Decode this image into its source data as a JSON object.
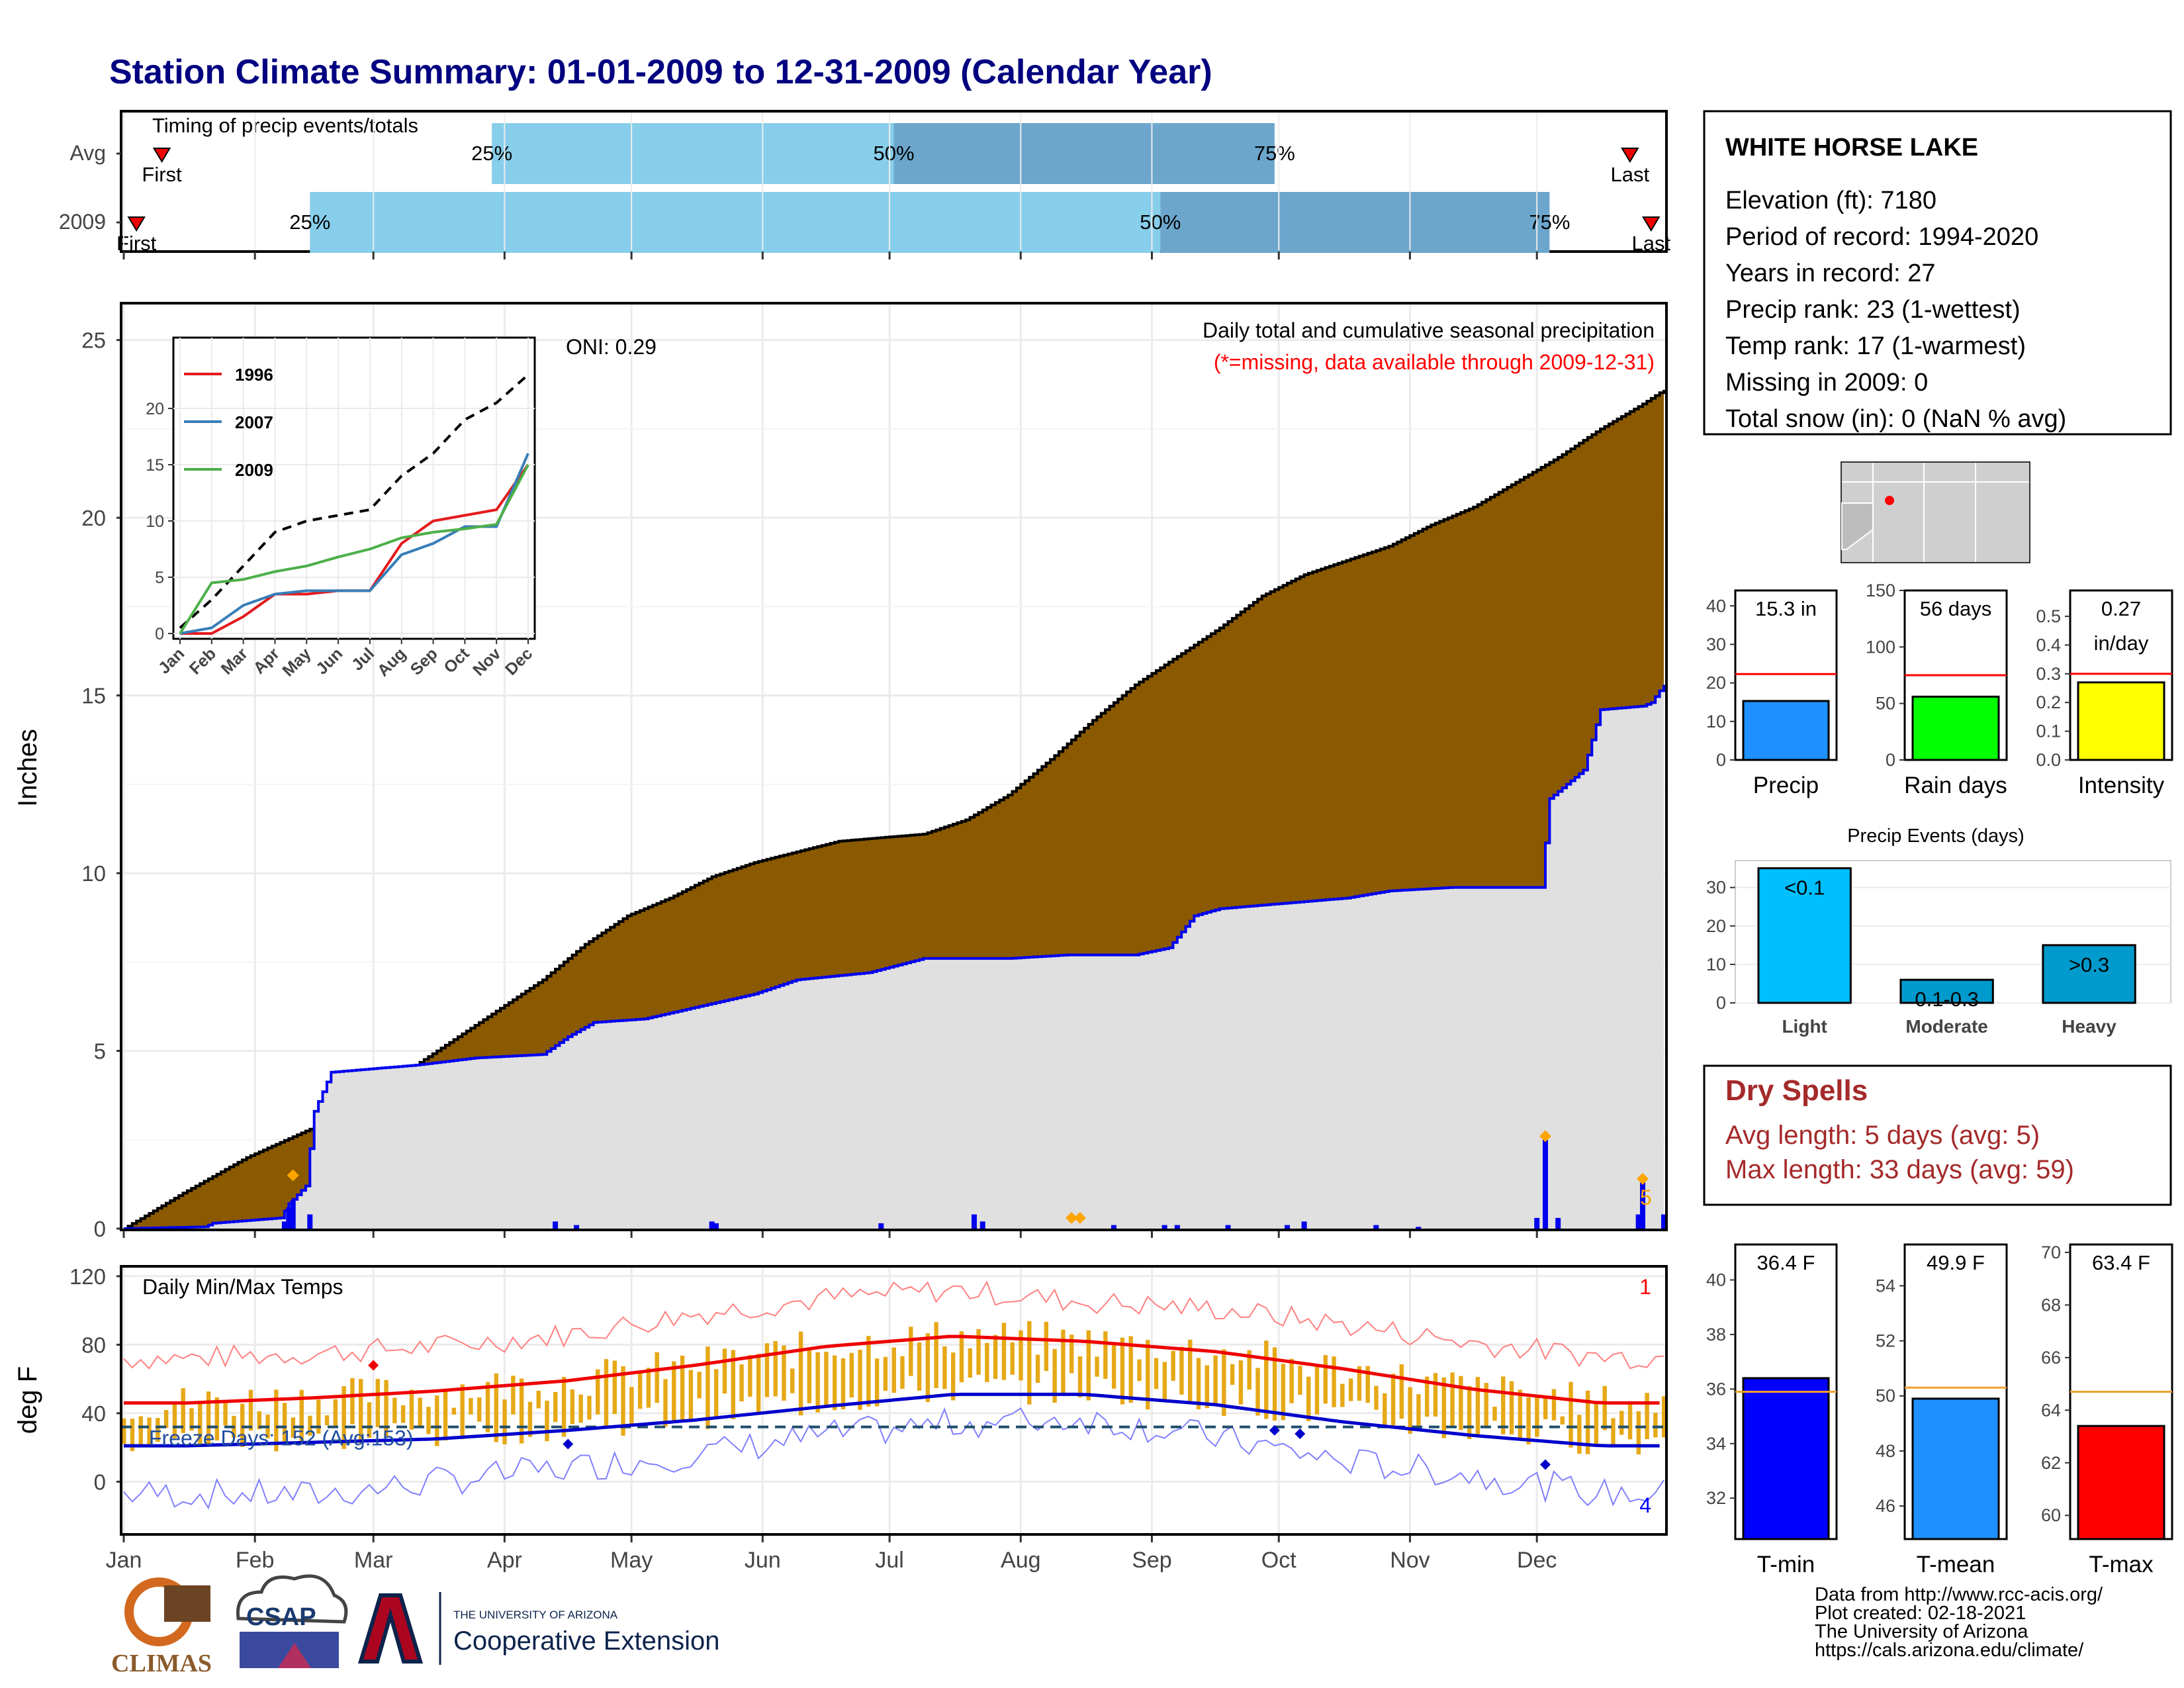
{
  "title": "Station Climate Summary: 01-01-2009 to 12-31-2009 (Calendar Year)",
  "timing": {
    "label": "Timing of precip events/totals",
    "rows": [
      {
        "name": "Avg",
        "first_doy": 10,
        "p25": 88,
        "p50": 183,
        "p75": 273,
        "last_doy": 357,
        "first_label": "First",
        "last_label": "Last"
      },
      {
        "name": "2009",
        "first_doy": 4,
        "p25": 45,
        "p50": 246,
        "p75": 338,
        "last_doy": 362,
        "first_label": "First",
        "last_label": "Last"
      }
    ],
    "pct_labels": [
      "25%",
      "50%",
      "75%"
    ],
    "colors": {
      "light": "#87ceeb",
      "dark": "#6ca6cd"
    }
  },
  "info": {
    "station": "WHITE HORSE LAKE",
    "lines": [
      "Elevation (ft): 7180",
      "Period of record: 1994-2020",
      "Years in record: 27",
      "Precip rank: 23 (1-wettest)",
      "Temp rank: 17 (1-warmest)",
      "Missing in 2009: 0",
      "Total snow (in): 0 (NaN % avg)"
    ]
  },
  "precip_panel": {
    "ylabel": "Inches",
    "header1": "Daily total and cumulative seasonal precipitation",
    "header2": "(*=missing, data available through 2009-12-31)",
    "oni": "ONI: 0.29",
    "count_label": "5"
  },
  "temp_panel": {
    "ylabel": "deg F",
    "label": "Daily Min/Max Temps",
    "freeze": "Freeze Days: 152 (Avg:153)",
    "count_top": "1",
    "count_bottom": "4"
  },
  "month_labels": [
    "Jan",
    "Feb",
    "Mar",
    "Apr",
    "May",
    "Jun",
    "Jul",
    "Aug",
    "Sep",
    "Oct",
    "Nov",
    "Dec"
  ],
  "inset_month_labels": [
    "Jan",
    "Feb",
    "Mar",
    "Apr",
    "May",
    "Jun",
    "Jul",
    "Aug",
    "Sep",
    "Oct",
    "Nov",
    "Dec"
  ],
  "chart_data": [
    {
      "type": "area",
      "title": "Daily total and cumulative seasonal precipitation",
      "ylabel": "Inches",
      "ylim": [
        0,
        26
      ],
      "series": [
        {
          "name": "Average cumulative",
          "x_doy": [
            1,
            15,
            30,
            45,
            60,
            75,
            90,
            100,
            110,
            120,
            130,
            140,
            150,
            160,
            170,
            180,
            190,
            200,
            210,
            220,
            230,
            240,
            250,
            260,
            270,
            280,
            290,
            300,
            310,
            320,
            330,
            340,
            350,
            360,
            365
          ],
          "values": [
            0,
            1.0,
            2.0,
            2.8,
            3.8,
            5.0,
            6.2,
            7.0,
            8.0,
            8.8,
            9.3,
            9.9,
            10.3,
            10.6,
            10.9,
            11.0,
            11.1,
            11.5,
            12.2,
            13.2,
            14.3,
            15.3,
            16.1,
            16.9,
            17.8,
            18.4,
            18.8,
            19.2,
            19.8,
            20.3,
            21.0,
            21.7,
            22.5,
            23.2,
            23.6
          ]
        },
        {
          "name": "2009 cumulative",
          "x_doy": [
            1,
            20,
            22,
            38,
            40,
            44,
            46,
            50,
            60,
            70,
            84,
            100,
            106,
            112,
            124,
            150,
            160,
            177,
            190,
            210,
            224,
            240,
            248,
            254,
            260,
            270,
            280,
            290,
            300,
            315,
            336,
            338,
            346,
            350,
            360,
            362,
            365
          ],
          "values": [
            0,
            0.05,
            0.15,
            0.3,
            0.7,
            1.2,
            3.3,
            4.4,
            4.5,
            4.6,
            4.8,
            4.9,
            5.4,
            5.8,
            5.9,
            6.6,
            7.0,
            7.2,
            7.6,
            7.6,
            7.7,
            7.7,
            7.9,
            8.8,
            9.0,
            9.1,
            9.2,
            9.3,
            9.5,
            9.6,
            9.6,
            12.1,
            12.9,
            14.6,
            14.7,
            14.8,
            15.3
          ]
        },
        {
          "name": "2009 daily",
          "x_doy": [
            39,
            40,
            41,
            45,
            103,
            108,
            140,
            141,
            180,
            202,
            204,
            235,
            247,
            250,
            262,
            276,
            280,
            297,
            307,
            335,
            337,
            340,
            359,
            360,
            365
          ],
          "values": [
            0.2,
            0.6,
            0.8,
            0.4,
            0.2,
            0.1,
            0.2,
            0.15,
            0.15,
            0.4,
            0.2,
            0.1,
            0.1,
            0.1,
            0.1,
            0.1,
            0.2,
            0.1,
            0.05,
            0.3,
            2.5,
            0.3,
            0.4,
            1.3,
            0.4
          ]
        }
      ]
    },
    {
      "type": "line",
      "title": "Inset: cumulative precipitation",
      "ylim": [
        0,
        25
      ],
      "categories": [
        "Jan",
        "Feb",
        "Mar",
        "Apr",
        "May",
        "Jun",
        "Jul",
        "Aug",
        "Sep",
        "Oct",
        "Nov",
        "Dec"
      ],
      "series": [
        {
          "name": "Average",
          "values": [
            0.5,
            3,
            6,
            9,
            10,
            10.5,
            11,
            14,
            16,
            19,
            20.5,
            23
          ],
          "color": "#000000"
        },
        {
          "name": "1996",
          "values": [
            0,
            0,
            1.5,
            3.5,
            3.5,
            3.8,
            3.8,
            8,
            10,
            10.5,
            11,
            15
          ],
          "color": "#e41a1c"
        },
        {
          "name": "2007",
          "values": [
            0,
            0.5,
            2.5,
            3.5,
            3.8,
            3.8,
            3.8,
            7,
            8,
            9.5,
            9.5,
            16
          ],
          "color": "#377eb8"
        },
        {
          "name": "2009",
          "values": [
            0,
            4.5,
            4.8,
            5.5,
            6,
            6.8,
            7.5,
            8.5,
            9,
            9.3,
            9.7,
            15
          ],
          "color": "#4daf4a"
        }
      ]
    },
    {
      "type": "line",
      "title": "Daily Min/Max Temps",
      "ylabel": "deg F",
      "ylim": [
        -30,
        125
      ],
      "categories": [
        "Jan",
        "Feb",
        "Mar",
        "Apr",
        "May",
        "Jun",
        "Jul",
        "Aug",
        "Sep",
        "Oct",
        "Nov",
        "Dec"
      ],
      "series": [
        {
          "name": "Avg Tmax",
          "values": [
            46,
            49,
            53,
            59,
            68,
            79,
            85,
            82,
            76,
            66,
            54,
            46
          ]
        },
        {
          "name": "Avg Tmin",
          "values": [
            21,
            23,
            25,
            30,
            36,
            44,
            51,
            51,
            45,
            35,
            27,
            21
          ]
        },
        {
          "name": "Record high",
          "values": [
            72,
            75,
            79,
            86,
            98,
            107,
            112,
            105,
            101,
            92,
            81,
            73
          ]
        },
        {
          "name": "Record low",
          "values": [
            -7,
            -8,
            0,
            8,
            16,
            27,
            34,
            37,
            26,
            12,
            4,
            -7
          ]
        }
      ],
      "freeze_line": 32
    },
    {
      "type": "bar",
      "title": "Precip",
      "categories": [
        "Precip"
      ],
      "values": [
        15.3
      ],
      "label": "15.3 in",
      "average": 22.3,
      "ylim": [
        0,
        44
      ],
      "color": "#1e90ff"
    },
    {
      "type": "bar",
      "title": "Rain days",
      "categories": [
        "Rain days"
      ],
      "values": [
        56
      ],
      "label": "56 days",
      "average": 75,
      "ylim": [
        0,
        150
      ],
      "color": "#00ff00"
    },
    {
      "type": "bar",
      "title": "Intensity",
      "categories": [
        "Intensity"
      ],
      "values": [
        0.27
      ],
      "label": "0.27 in/day",
      "average": 0.3,
      "ylim": [
        0,
        0.59
      ],
      "color": "#ffff00"
    },
    {
      "type": "bar",
      "title": "Precip Events (days)",
      "categories": [
        "Light",
        "Moderate",
        "Heavy"
      ],
      "values": [
        35,
        6,
        15
      ],
      "bar_labels": [
        "<0.1",
        "0.1-0.3",
        ">0.3"
      ],
      "ylim": [
        0,
        37
      ],
      "colors": [
        "#00bfff",
        "#009acd",
        "#009acd"
      ]
    },
    {
      "type": "bar",
      "title": "T-min",
      "categories": [
        "T-min"
      ],
      "values": [
        36.4
      ],
      "label": "36.4 F",
      "average": 35.9,
      "ylim": [
        30.5,
        41.3
      ],
      "color": "#0000ff"
    },
    {
      "type": "bar",
      "title": "T-mean",
      "categories": [
        "T-mean"
      ],
      "values": [
        49.9
      ],
      "label": "49.9 F",
      "average": 50.3,
      "ylim": [
        44.8,
        55.5
      ],
      "color": "#1e90ff"
    },
    {
      "type": "bar",
      "title": "T-max",
      "categories": [
        "T-max"
      ],
      "values": [
        63.4
      ],
      "label": "63.4 F",
      "average": 64.7,
      "ylim": [
        59.1,
        70.3
      ],
      "color": "#ff0000"
    }
  ],
  "dry_spells": {
    "title": "Dry Spells",
    "avg": "Avg length: 5 days (avg: 5)",
    "max": "Max length: 33 days (avg: 59)"
  },
  "footer": {
    "lines": [
      "Data from http://www.rcc-acis.org/",
      "Plot created: 02-18-2021",
      "The University of Arizona",
      "https://cals.arizona.edu/climate/"
    ],
    "logo_climas": "CLIMAS",
    "logo_csap": "CSAP",
    "logo_ua_small": "THE UNIVERSITY OF ARIZONA",
    "logo_ua_big": "Cooperative Extension"
  }
}
